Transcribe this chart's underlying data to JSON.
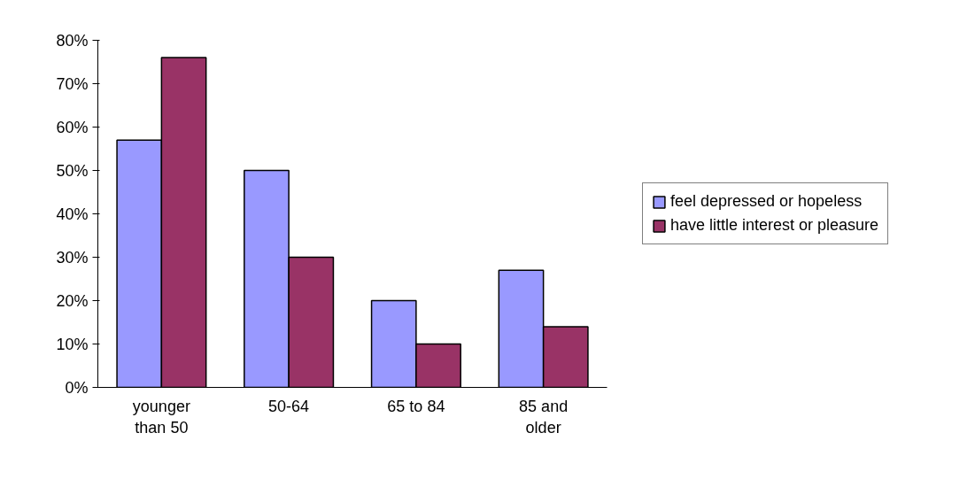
{
  "chart_data": {
    "type": "bar",
    "categories": [
      "younger than 50",
      "50-64",
      "65 to 84",
      "85 and older"
    ],
    "series": [
      {
        "name": "feel depressed or hopeless",
        "color": "#9999ff",
        "values": [
          57,
          50,
          20,
          27
        ]
      },
      {
        "name": "have little interest or pleasure",
        "color": "#993366",
        "values": [
          76,
          30,
          10,
          14
        ]
      }
    ],
    "ylim": [
      0,
      80
    ],
    "yticks": [
      {
        "value": 0,
        "label": "0%"
      },
      {
        "value": 10,
        "label": "10%"
      },
      {
        "value": 20,
        "label": "20%"
      },
      {
        "value": 30,
        "label": "30%"
      },
      {
        "value": 40,
        "label": "40%"
      },
      {
        "value": 50,
        "label": "50%"
      },
      {
        "value": 60,
        "label": "60%"
      },
      {
        "value": 70,
        "label": "70%"
      },
      {
        "value": 80,
        "label": "80%"
      }
    ],
    "grid": false,
    "legend": "right"
  }
}
